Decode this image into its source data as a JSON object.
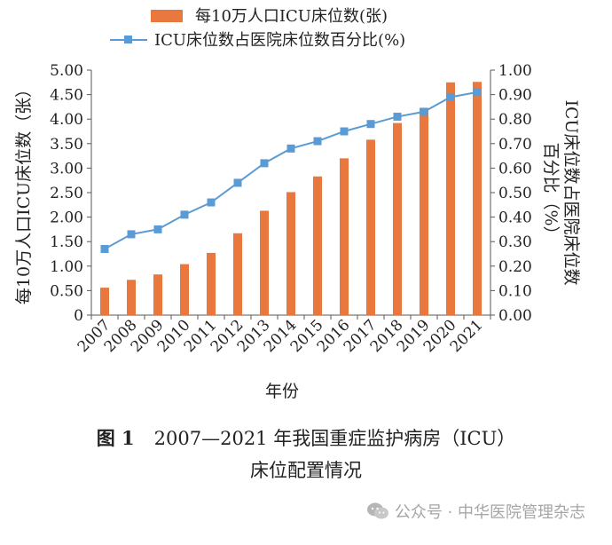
{
  "chart_data": {
    "type": "bar+line",
    "categories": [
      "2007",
      "2008",
      "2009",
      "2010",
      "2011",
      "2012",
      "2013",
      "2014",
      "2015",
      "2016",
      "2017",
      "2018",
      "2019",
      "2020",
      "2021"
    ],
    "series": [
      {
        "name": "每10万人口ICU床位数(张)",
        "type": "bar",
        "axis": "left",
        "color": "#e8783e",
        "values": [
          0.56,
          0.72,
          0.83,
          1.04,
          1.27,
          1.67,
          2.13,
          2.51,
          2.83,
          3.2,
          3.58,
          3.92,
          4.23,
          4.75,
          4.76
        ]
      },
      {
        "name": "ICU床位数占医院床位数百分比(%)",
        "type": "line",
        "axis": "right",
        "color": "#5b9bd5",
        "values": [
          0.27,
          0.33,
          0.35,
          0.41,
          0.46,
          0.54,
          0.62,
          0.68,
          0.71,
          0.75,
          0.78,
          0.81,
          0.83,
          0.89,
          0.91
        ]
      }
    ],
    "ylabel": "每10万人口ICU床位数（张）",
    "y2label_line1": "ICU床位数占医院床位数",
    "y2label_line2": "百分比（%）",
    "xlabel": "年份",
    "ylim": [
      0,
      5
    ],
    "y2lim": [
      0,
      1
    ],
    "yticks": [
      "0",
      "0.50",
      "1.00",
      "1.50",
      "2.00",
      "2.50",
      "3.00",
      "3.50",
      "4.00",
      "4.50",
      "5.00"
    ],
    "y2ticks": [
      "0.00",
      "0.10",
      "0.20",
      "0.30",
      "0.40",
      "0.50",
      "0.60",
      "0.70",
      "0.80",
      "0.90",
      "1.00"
    ],
    "legend_position": "top-left",
    "grid": false
  },
  "caption": {
    "figure_label": "图 1",
    "line1": "2007—2021 年我国重症监护病房（ICU）",
    "line2": "床位配置情况"
  },
  "watermark": {
    "text": "公众号 · 中华医院管理杂志",
    "icon": "wechat-icon"
  }
}
